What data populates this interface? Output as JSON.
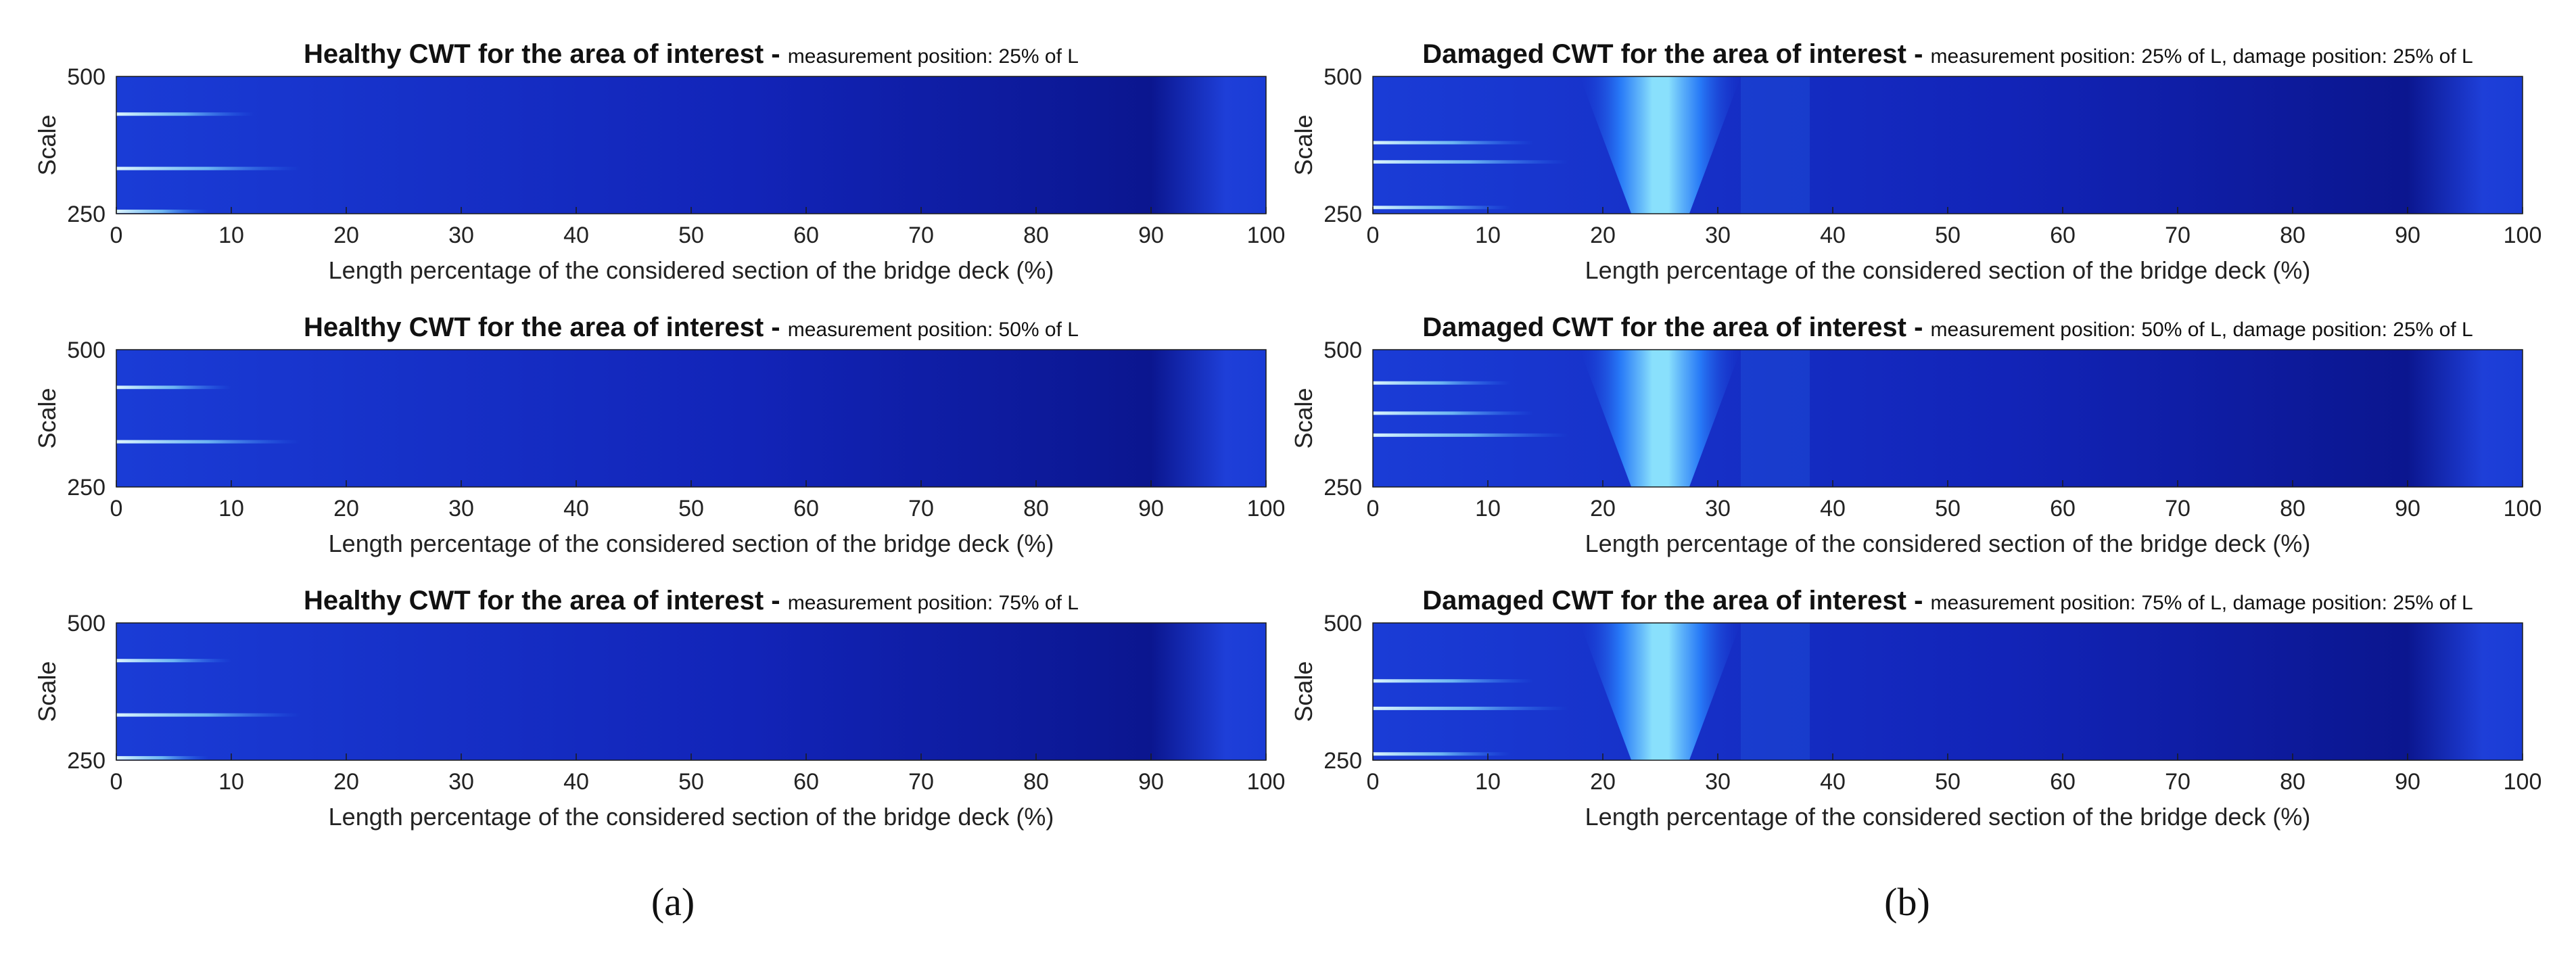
{
  "panel_labels": [
    "(a)",
    "(b)"
  ],
  "chart_data": [
    {
      "type": "heatmap",
      "panel": "a",
      "title": "Healthy CWT for the area of interest -",
      "subtitle": "measurement position: 25% of L",
      "xlabel": "Length percentage of the considered section of the bridge deck (%)",
      "ylabel": "Scale",
      "xlim": [
        0,
        100
      ],
      "ylim": [
        250,
        500
      ],
      "xticks": [
        0,
        10,
        20,
        30,
        40,
        50,
        60,
        70,
        80,
        90,
        100
      ],
      "yticks": [
        250,
        500
      ],
      "colormap": [
        "#0b168f",
        "#1a3cd6",
        "#2a86ff",
        "#8fe9ff"
      ],
      "damage_band": null,
      "streaks": [
        {
          "scale": 333,
          "x_end": 16
        },
        {
          "scale": 432,
          "x_end": 12
        },
        {
          "scale": 255,
          "x_end": 8
        }
      ]
    },
    {
      "type": "heatmap",
      "panel": "a",
      "title": "Healthy CWT for the area of interest -",
      "subtitle": "measurement position: 50% of L",
      "xlabel": "Length percentage of the considered section of the bridge deck (%)",
      "ylabel": "Scale",
      "xlim": [
        0,
        100
      ],
      "ylim": [
        250,
        500
      ],
      "xticks": [
        0,
        10,
        20,
        30,
        40,
        50,
        60,
        70,
        80,
        90,
        100
      ],
      "yticks": [
        250,
        500
      ],
      "colormap": [
        "#0b168f",
        "#1a3cd6",
        "#2a86ff",
        "#8fe9ff"
      ],
      "damage_band": null,
      "streaks": [
        {
          "scale": 333,
          "x_end": 16
        },
        {
          "scale": 432,
          "x_end": 10
        }
      ]
    },
    {
      "type": "heatmap",
      "panel": "a",
      "title": "Healthy CWT for the area of interest -",
      "subtitle": "measurement position: 75% of L",
      "xlabel": "Length percentage of the considered section of the bridge deck (%)",
      "ylabel": "Scale",
      "xlim": [
        0,
        100
      ],
      "ylim": [
        250,
        500
      ],
      "xticks": [
        0,
        10,
        20,
        30,
        40,
        50,
        60,
        70,
        80,
        90,
        100
      ],
      "yticks": [
        250,
        500
      ],
      "colormap": [
        "#0b168f",
        "#1a3cd6",
        "#2a86ff",
        "#8fe9ff"
      ],
      "damage_band": null,
      "streaks": [
        {
          "scale": 333,
          "x_end": 16
        },
        {
          "scale": 432,
          "x_end": 10
        },
        {
          "scale": 255,
          "x_end": 8
        }
      ]
    },
    {
      "type": "heatmap",
      "panel": "b",
      "title": "Damaged CWT for the area of interest -",
      "subtitle": "measurement position: 25% of L, damage position: 25% of L",
      "xlabel": "Length percentage of the considered section of the bridge deck (%)",
      "ylabel": "Scale",
      "xlim": [
        0,
        100
      ],
      "ylim": [
        250,
        500
      ],
      "xticks": [
        0,
        10,
        20,
        30,
        40,
        50,
        60,
        70,
        80,
        90,
        100
      ],
      "yticks": [
        250,
        500
      ],
      "colormap": [
        "#0b168f",
        "#1a3cd6",
        "#2a86ff",
        "#8fe9ff"
      ],
      "damage_band": {
        "center": 25,
        "x_range": [
          18,
          32
        ]
      },
      "streaks": [
        {
          "scale": 345,
          "x_end": 17
        },
        {
          "scale": 380,
          "x_end": 14
        },
        {
          "scale": 262,
          "x_end": 12
        }
      ]
    },
    {
      "type": "heatmap",
      "panel": "b",
      "title": "Damaged CWT for the area of interest -",
      "subtitle": "measurement position: 50% of L, damage position: 25% of L",
      "xlabel": "Length percentage of the considered section of the bridge deck (%)",
      "ylabel": "Scale",
      "xlim": [
        0,
        100
      ],
      "ylim": [
        250,
        500
      ],
      "xticks": [
        0,
        10,
        20,
        30,
        40,
        50,
        60,
        70,
        80,
        90,
        100
      ],
      "yticks": [
        250,
        500
      ],
      "colormap": [
        "#0b168f",
        "#1a3cd6",
        "#2a86ff",
        "#8fe9ff"
      ],
      "damage_band": {
        "center": 25,
        "x_range": [
          18,
          32
        ]
      },
      "streaks": [
        {
          "scale": 345,
          "x_end": 17
        },
        {
          "scale": 385,
          "x_end": 14
        },
        {
          "scale": 440,
          "x_end": 12
        }
      ]
    },
    {
      "type": "heatmap",
      "panel": "b",
      "title": "Damaged CWT for the area of interest -",
      "subtitle": "measurement position: 75% of L, damage position: 25% of L",
      "xlabel": "Length percentage of the considered section of the bridge deck (%)",
      "ylabel": "Scale",
      "xlim": [
        0,
        100
      ],
      "ylim": [
        250,
        500
      ],
      "xticks": [
        0,
        10,
        20,
        30,
        40,
        50,
        60,
        70,
        80,
        90,
        100
      ],
      "yticks": [
        250,
        500
      ],
      "colormap": [
        "#0b168f",
        "#1a3cd6",
        "#2a86ff",
        "#8fe9ff"
      ],
      "damage_band": {
        "center": 25,
        "x_range": [
          18,
          32
        ]
      },
      "streaks": [
        {
          "scale": 345,
          "x_end": 17
        },
        {
          "scale": 395,
          "x_end": 14
        },
        {
          "scale": 262,
          "x_end": 12
        }
      ]
    }
  ]
}
